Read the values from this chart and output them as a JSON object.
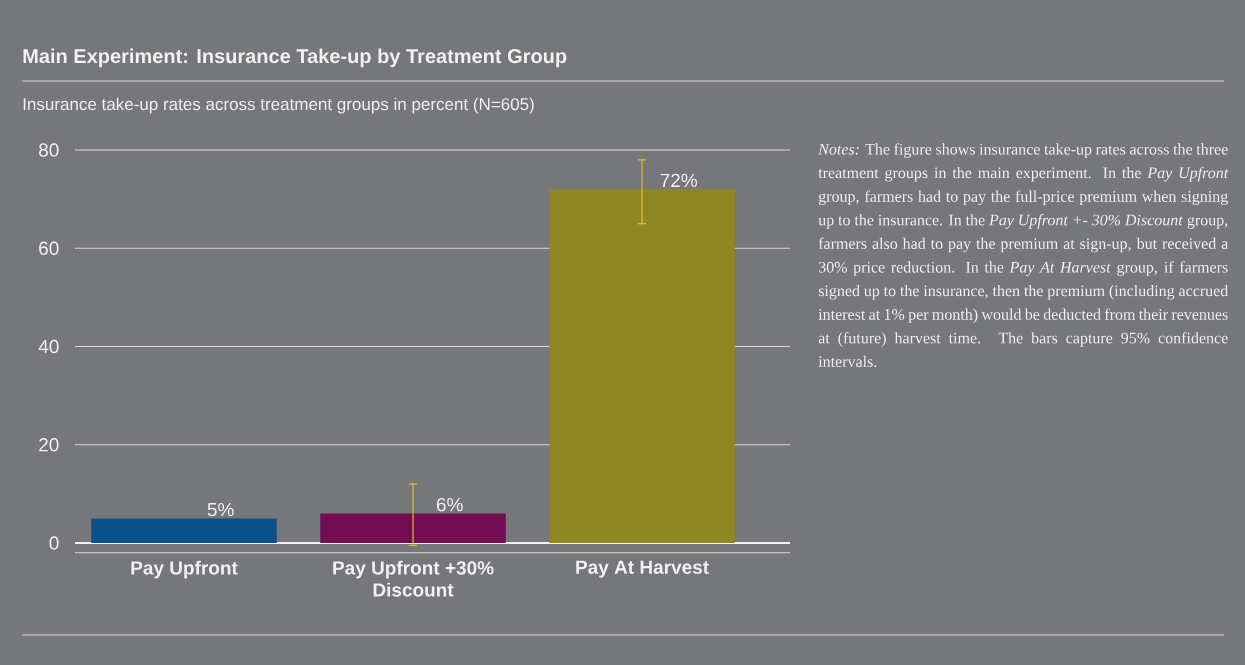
{
  "chart_data": {
    "type": "bar",
    "title": "Main Experiment: Insurance Take-up by Treatment Group",
    "subtitle": "Insurance take-up rates across treatment groups in percent (N=605)",
    "categories": [
      "Pay Upfront",
      "Pay Upfront +30% Discount",
      "Pay At Harvest"
    ],
    "values": [
      5,
      6,
      72
    ],
    "colors": [
      "#0a5089",
      "#720d52",
      "#8f8723"
    ],
    "errors": [
      null,
      [
        -0.5,
        12
      ],
      [
        65,
        78
      ]
    ],
    "value_labels": [
      "5%",
      "6%",
      "72%"
    ],
    "ylim": [
      -2,
      80
    ],
    "yticks": [
      {
        "value": -2,
        "label": null
      },
      0,
      20,
      40,
      60,
      80
    ],
    "grid": "y",
    "annotations": [
      "*Notes:* The figure shows insurance take-up rates across the three treatment groups in the main experiment. In the *Pay Upfront* group, farmers had to pay the full-price premium when signing up to the insurance. In the *Pay Upfront +- 30% Discount* group, farmers also had to pay the premium at sign-up, but received a 30% price reduction. In the *Pay At Harvest* group, if farmers signed up to the insurance, then the premium (including accrued interest at 1% per month) would be deducted from their revenues at (future) harvest time. The bars capture 95% confidence intervals."
    ]
  }
}
